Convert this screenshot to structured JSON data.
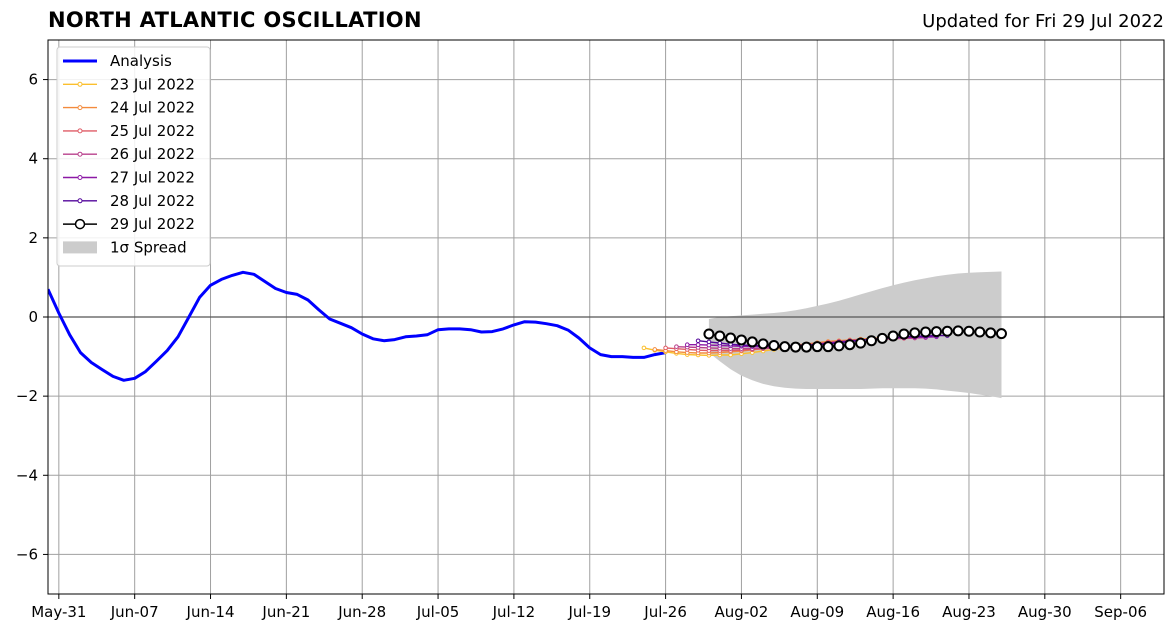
{
  "header": {
    "title": "NORTH ATLANTIC OSCILLATION",
    "updated": "Updated for Fri 29 Jul 2022"
  },
  "chart_data": {
    "type": "line",
    "title": "NORTH ATLANTIC OSCILLATION",
    "subtitle": "Updated for Fri 29 Jul 2022",
    "x_axis": {
      "type": "date",
      "range": [
        "2022-05-30",
        "2022-09-10"
      ],
      "ticks": [
        "2022-05-31",
        "2022-06-07",
        "2022-06-14",
        "2022-06-21",
        "2022-06-28",
        "2022-07-05",
        "2022-07-12",
        "2022-07-19",
        "2022-07-26",
        "2022-08-02",
        "2022-08-09",
        "2022-08-16",
        "2022-08-23",
        "2022-08-30",
        "2022-09-06"
      ],
      "tick_labels": [
        "May-31",
        "Jun-07",
        "Jun-14",
        "Jun-21",
        "Jun-28",
        "Jul-05",
        "Jul-12",
        "Jul-19",
        "Jul-26",
        "Aug-02",
        "Aug-09",
        "Aug-16",
        "Aug-23",
        "Aug-30",
        "Sep-06"
      ]
    },
    "y_axis": {
      "range": [
        -7,
        7
      ],
      "ticks": [
        6,
        4,
        2,
        0,
        -2,
        -4,
        -6
      ],
      "tick_labels": [
        "6",
        "4",
        "2",
        "0",
        "−2",
        "−4",
        "−6"
      ]
    },
    "grid": true,
    "zero_line": true,
    "legend_placement": "top-left",
    "legend": [
      {
        "label": "Analysis",
        "kind": "line",
        "color": "#0000ff"
      },
      {
        "label": "23 Jul 2022",
        "kind": "marker-line",
        "color": "#fbbf2d"
      },
      {
        "label": "24 Jul 2022",
        "kind": "marker-line",
        "color": "#f38b3d"
      },
      {
        "label": "25 Jul 2022",
        "kind": "marker-line",
        "color": "#df5b66"
      },
      {
        "label": "26 Jul 2022",
        "kind": "marker-line",
        "color": "#b8408c"
      },
      {
        "label": "27 Jul 2022",
        "kind": "marker-line",
        "color": "#8c19a6"
      },
      {
        "label": "28 Jul 2022",
        "kind": "marker-line",
        "color": "#53069b"
      },
      {
        "label": "29 Jul 2022",
        "kind": "open-circle",
        "color": "#000000"
      },
      {
        "label": "1σ Spread",
        "kind": "patch",
        "color": "#cccccc"
      }
    ],
    "series": [
      {
        "name": "Analysis",
        "color": "#0000ff",
        "start": "2022-05-30",
        "values": [
          0.7,
          0.1,
          -0.45,
          -0.9,
          -1.15,
          -1.33,
          -1.5,
          -1.6,
          -1.55,
          -1.38,
          -1.12,
          -0.85,
          -0.5,
          0.0,
          0.5,
          0.8,
          0.95,
          1.05,
          1.13,
          1.08,
          0.9,
          0.72,
          0.62,
          0.57,
          0.43,
          0.18,
          -0.05,
          -0.16,
          -0.27,
          -0.43,
          -0.55,
          -0.6,
          -0.57,
          -0.5,
          -0.48,
          -0.45,
          -0.32,
          -0.3,
          -0.3,
          -0.32,
          -0.38,
          -0.37,
          -0.3,
          -0.2,
          -0.12,
          -0.13,
          -0.17,
          -0.22,
          -0.33,
          -0.53,
          -0.78,
          -0.95,
          -1.0,
          -1.0,
          -1.02,
          -1.02,
          -0.95,
          -0.9
        ]
      },
      {
        "name": "23 Jul 2022",
        "color": "#fbbf2d",
        "start": "2022-07-24",
        "values": [
          -0.78,
          -0.84,
          -0.88,
          -0.92,
          -0.95,
          -0.96,
          -0.97,
          -0.96,
          -0.96,
          -0.93,
          -0.9,
          -0.86,
          -0.82,
          -0.78,
          -0.74,
          -0.71,
          -0.68,
          -0.65,
          -0.62,
          -0.59,
          -0.56,
          -0.54,
          -0.52,
          -0.5
        ]
      },
      {
        "name": "24 Jul 2022",
        "color": "#f38b3d",
        "start": "2022-07-25",
        "values": [
          -0.82,
          -0.85,
          -0.88,
          -0.9,
          -0.91,
          -0.91,
          -0.9,
          -0.88,
          -0.86,
          -0.83,
          -0.8,
          -0.77,
          -0.74,
          -0.71,
          -0.68,
          -0.65,
          -0.62,
          -0.6,
          -0.58,
          -0.56,
          -0.54,
          -0.53,
          -0.52,
          -0.51
        ]
      },
      {
        "name": "25 Jul 2022",
        "color": "#df5b66",
        "start": "2022-07-26",
        "values": [
          -0.78,
          -0.8,
          -0.82,
          -0.84,
          -0.85,
          -0.85,
          -0.85,
          -0.84,
          -0.82,
          -0.8,
          -0.78,
          -0.76,
          -0.73,
          -0.7,
          -0.67,
          -0.64,
          -0.62,
          -0.6,
          -0.58,
          -0.57,
          -0.56,
          -0.55,
          -0.54,
          -0.53
        ]
      },
      {
        "name": "26 Jul 2022",
        "color": "#b8408c",
        "start": "2022-07-27",
        "values": [
          -0.75,
          -0.76,
          -0.77,
          -0.78,
          -0.79,
          -0.8,
          -0.8,
          -0.8,
          -0.79,
          -0.78,
          -0.77,
          -0.75,
          -0.72,
          -0.69,
          -0.66,
          -0.63,
          -0.6,
          -0.58,
          -0.56,
          -0.55,
          -0.54,
          -0.53,
          -0.53,
          -0.52
        ]
      },
      {
        "name": "27 Jul 2022",
        "color": "#8c19a6",
        "start": "2022-07-28",
        "values": [
          -0.7,
          -0.7,
          -0.71,
          -0.72,
          -0.73,
          -0.74,
          -0.75,
          -0.75,
          -0.75,
          -0.74,
          -0.73,
          -0.71,
          -0.69,
          -0.66,
          -0.63,
          -0.6,
          -0.58,
          -0.56,
          -0.54,
          -0.53,
          -0.52,
          -0.51,
          -0.51,
          -0.5
        ]
      },
      {
        "name": "28 Jul 2022",
        "color": "#53069b",
        "start": "2022-07-29",
        "values": [
          -0.6,
          -0.63,
          -0.66,
          -0.69,
          -0.71,
          -0.72,
          -0.73,
          -0.73,
          -0.73,
          -0.72,
          -0.71,
          -0.7,
          -0.68,
          -0.65,
          -0.62,
          -0.59,
          -0.56,
          -0.54,
          -0.52,
          -0.5,
          -0.49,
          -0.48,
          -0.47,
          -0.47
        ]
      },
      {
        "name": "29 Jul 2022",
        "color": "#000000",
        "start": "2022-07-30",
        "values": [
          -0.43,
          -0.48,
          -0.53,
          -0.58,
          -0.63,
          -0.68,
          -0.72,
          -0.75,
          -0.76,
          -0.76,
          -0.75,
          -0.75,
          -0.73,
          -0.7,
          -0.66,
          -0.6,
          -0.54,
          -0.48,
          -0.43,
          -0.4,
          -0.38,
          -0.37,
          -0.36,
          -0.35,
          -0.36,
          -0.38,
          -0.4,
          -0.42
        ]
      }
    ],
    "spread": {
      "name": "1σ Spread",
      "color": "#cccccc",
      "start": "2022-07-30",
      "upper": [
        -0.05,
        0.0,
        0.02,
        0.04,
        0.06,
        0.08,
        0.1,
        0.13,
        0.17,
        0.22,
        0.28,
        0.34,
        0.41,
        0.49,
        0.57,
        0.65,
        0.73,
        0.8,
        0.87,
        0.93,
        0.98,
        1.03,
        1.07,
        1.1,
        1.12,
        1.13,
        1.14,
        1.15
      ],
      "lower": [
        -0.9,
        -1.12,
        -1.32,
        -1.48,
        -1.6,
        -1.69,
        -1.75,
        -1.79,
        -1.81,
        -1.82,
        -1.82,
        -1.82,
        -1.82,
        -1.82,
        -1.82,
        -1.81,
        -1.8,
        -1.8,
        -1.8,
        -1.8,
        -1.81,
        -1.83,
        -1.86,
        -1.89,
        -1.92,
        -1.96,
        -2.0,
        -2.05
      ]
    }
  }
}
